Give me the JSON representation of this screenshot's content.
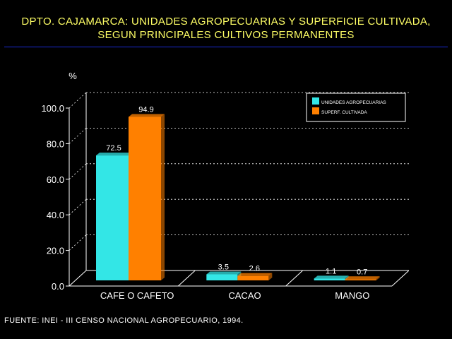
{
  "title_line1": "DPTO. CAJAMARCA: UNIDADES AGROPECUARIAS Y SUPERFICIE CULTIVADA,",
  "title_line2": "SEGUN PRINCIPALES CULTIVOS PERMANENTES",
  "source": "FUENTE: INEI - III CENSO NACIONAL AGROPECUARIO, 1994.",
  "colors": {
    "background": "#000000",
    "title": "#ffff66",
    "rule": "#1a2bd6",
    "series1": "#33e6e6",
    "series2": "#ff8000"
  },
  "chart_data": {
    "type": "bar",
    "categories": [
      "CAFE O CAFETO",
      "CACAO",
      "MANGO"
    ],
    "series": [
      {
        "name": "UNIDADES AGROPECUARIAS",
        "values": [
          72.5,
          3.5,
          1.1
        ],
        "labels": [
          "72.5",
          "3.5",
          "1.1"
        ]
      },
      {
        "name": "SUPERF. CULTIVADA",
        "values": [
          94.9,
          2.6,
          0.7
        ],
        "labels": [
          "94.9",
          "2.6",
          "0.7"
        ]
      }
    ],
    "ylabel": "%",
    "ylim": [
      0,
      100
    ],
    "yticks": [
      "0.0",
      "20.0",
      "40.0",
      "60.0",
      "80.0",
      "100.0"
    ],
    "grid": true,
    "three_d": true,
    "legend_position": "top-right"
  }
}
